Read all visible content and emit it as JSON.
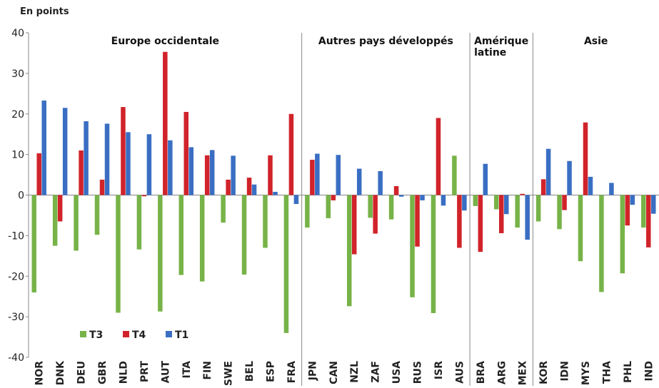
{
  "chart_data": {
    "type": "bar",
    "ylabel": "En points",
    "groups": [
      {
        "name": "Europe occidentale",
        "categories": [
          "NOR",
          "DNK",
          "DEU",
          "GBR",
          "NLD",
          "PRT",
          "AUT",
          "ITA",
          "FIN",
          "SWE",
          "BEL",
          "ESP",
          "FRA"
        ]
      },
      {
        "name": "Autres pays développés",
        "categories": [
          "JPN",
          "CAN",
          "NZL",
          "ZAF",
          "USA",
          "RUS",
          "ISR",
          "AUS"
        ]
      },
      {
        "name": "Amérique latine",
        "categories": [
          "BRA",
          "ARG",
          "MEX"
        ]
      },
      {
        "name": "Asie",
        "categories": [
          "KOR",
          "IDN",
          "MYS",
          "THA",
          "PHL",
          "IND"
        ]
      }
    ],
    "series": [
      {
        "name": "T3",
        "color": "#77b348",
        "values": [
          -24,
          -12.5,
          -13.7,
          -9.8,
          -29,
          -13.4,
          -28.7,
          -19.7,
          -21.3,
          -6.8,
          -19.6,
          -13,
          -34,
          -8,
          -5.7,
          -27.4,
          -5.6,
          -6,
          -25.2,
          -29.1,
          9.7,
          -2.7,
          -3.5,
          -8,
          -6.5,
          -8.4,
          -16.3,
          -23.9,
          -19.3,
          -8
        ]
      },
      {
        "name": "T4",
        "color": "#d1232a",
        "values": [
          10.3,
          -6.5,
          11,
          3.8,
          21.7,
          -0.3,
          35.3,
          20.5,
          9.8,
          3.8,
          4.3,
          9.8,
          20,
          8.7,
          -1.3,
          -14.6,
          -9.5,
          2.2,
          -12.7,
          19,
          -13,
          -14,
          -9.4,
          0.3,
          3.9,
          -3.7,
          17.9,
          0,
          -7.5,
          -12.9
        ]
      },
      {
        "name": "T1",
        "color": "#3a6ec3",
        "values": [
          23.3,
          21.5,
          18.2,
          17.6,
          15.5,
          15,
          13.5,
          11.8,
          11.1,
          9.7,
          2.6,
          0.8,
          -2.2,
          10.2,
          9.9,
          6.5,
          5.9,
          -0.4,
          -1.3,
          -2.6,
          -3.8,
          7.7,
          -4.7,
          -11,
          11.4,
          8.4,
          4.5,
          3,
          -2.4,
          -4.6
        ]
      }
    ],
    "ylim": [
      -40,
      40
    ],
    "yticks": [
      -40,
      -30,
      -20,
      -10,
      0,
      10,
      20,
      30,
      40
    ],
    "grid": false
  }
}
